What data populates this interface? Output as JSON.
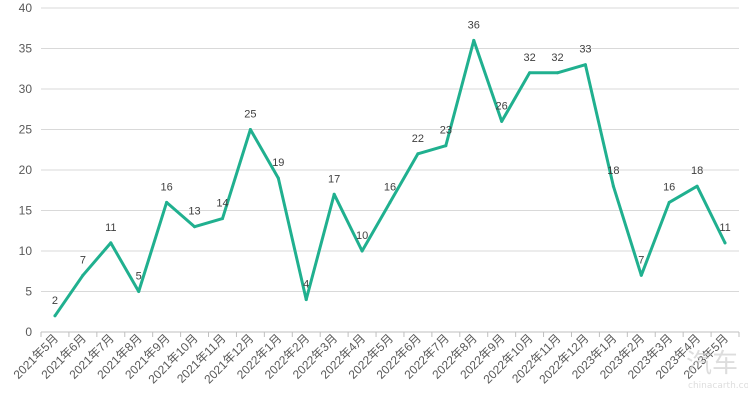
{
  "chart_data": {
    "type": "line",
    "title": "",
    "xlabel": "",
    "ylabel": "",
    "ylim": [
      0,
      40
    ],
    "yticks": [
      0,
      5,
      10,
      15,
      20,
      25,
      30,
      35,
      40
    ],
    "grid": "horizontal",
    "legend": "none",
    "categories": [
      "2021年5月",
      "2021年6月",
      "2021年7月",
      "2021年8月",
      "2021年9月",
      "2021年10月",
      "2021年11月",
      "2021年12月",
      "2022年1月",
      "2022年2月",
      "2022年3月",
      "2022年4月",
      "2022年5月",
      "2022年6月",
      "2022年7月",
      "2022年8月",
      "2022年9月",
      "2022年10月",
      "2022年11月",
      "2022年12月",
      "2023年1月",
      "2023年2月",
      "2023年3月",
      "2023年4月",
      "2023年5月"
    ],
    "series": [
      {
        "values": [
          2,
          7,
          11,
          5,
          16,
          13,
          14,
          25,
          19,
          4,
          17,
          10,
          16,
          22,
          23,
          36,
          26,
          32,
          32,
          33,
          18,
          7,
          16,
          18,
          11
        ],
        "color": "#20B08F"
      }
    ]
  },
  "colors": {
    "grid": "#d9d9d9",
    "axis": "#bfbfbf",
    "text": "#595959"
  },
  "watermark": {
    "logo": "汽车",
    "text": "chinacarth.com"
  }
}
